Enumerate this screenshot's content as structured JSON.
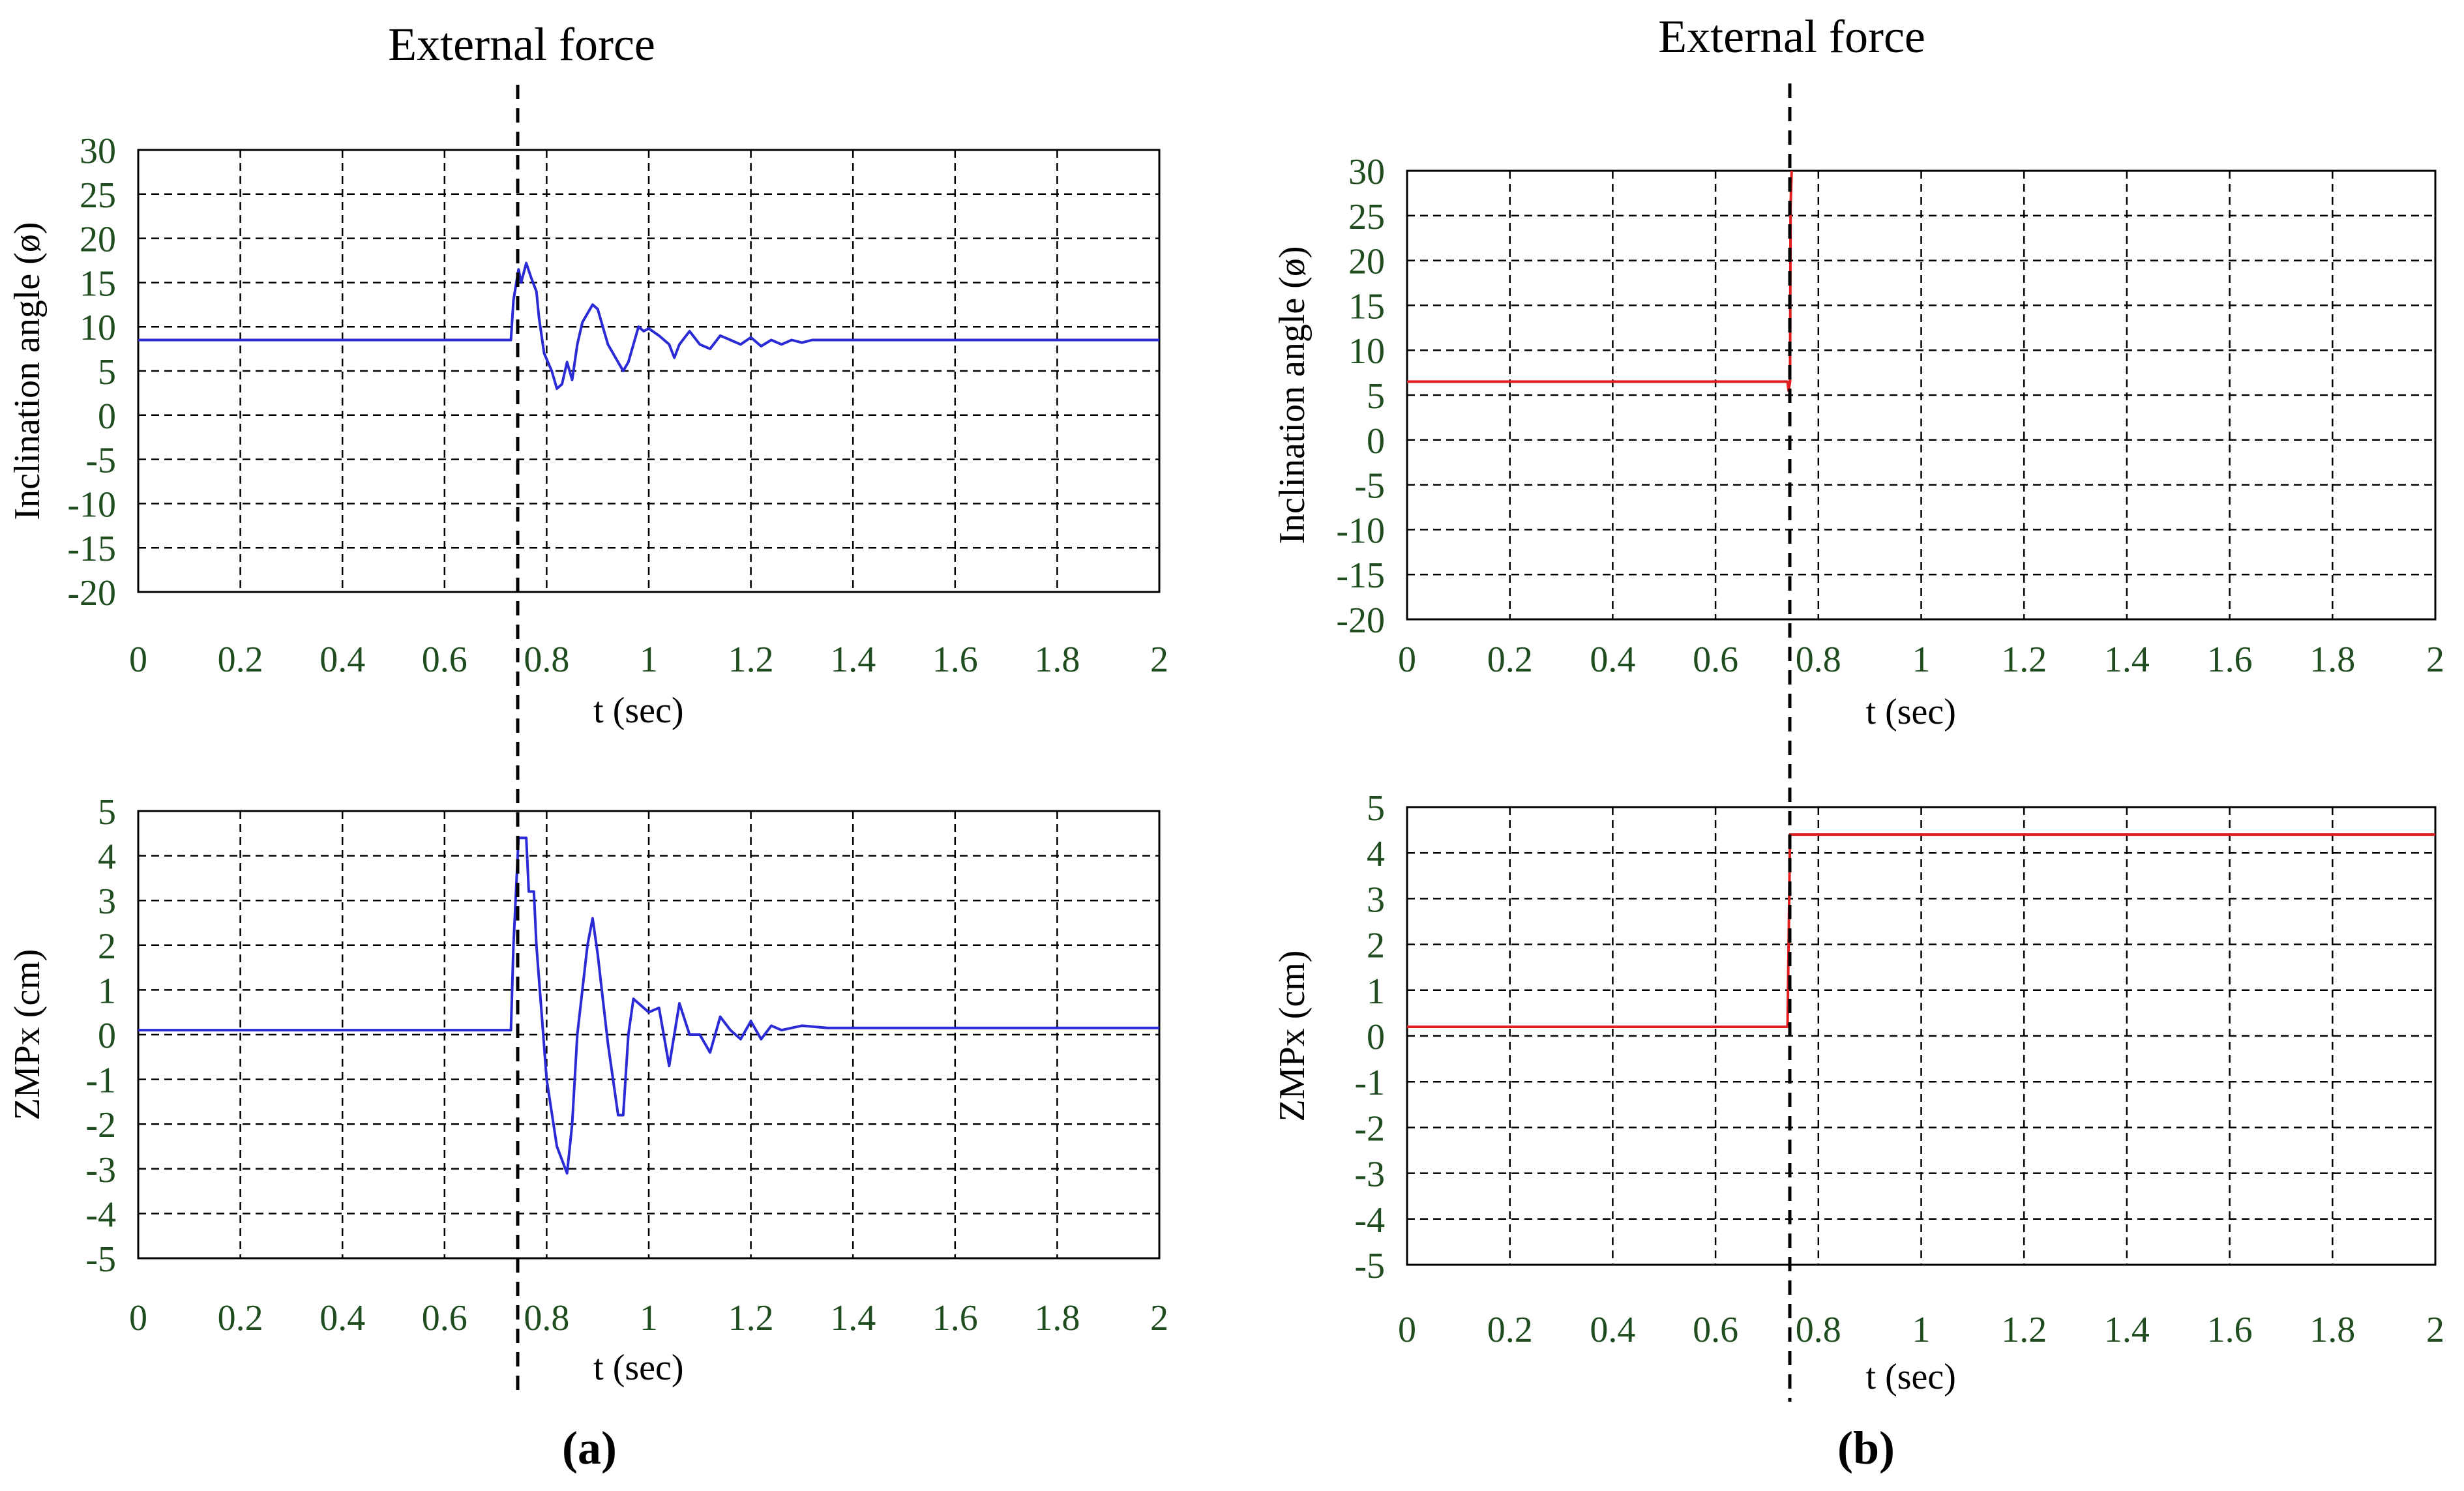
{
  "figure": {
    "external_force_label": "External force",
    "external_force_time": 0.73,
    "panel_labels": [
      "(a)",
      "(b)"
    ]
  },
  "chart_data": [
    {
      "id": "a-top",
      "panel": "(a)",
      "type": "line",
      "title": "",
      "xlabel": "t (sec)",
      "ylabel": "Inclination angle (ø)",
      "xlim": [
        0,
        2
      ],
      "ylim": [
        -20,
        30
      ],
      "xticks": [
        "0",
        "0.2",
        "0.4",
        "0.6",
        "0.8",
        "1",
        "1.2",
        "1.4",
        "1.6",
        "1.8",
        "2"
      ],
      "yticks": [
        "30",
        "25",
        "20",
        "15",
        "10",
        "5",
        "0",
        "-5",
        "-10",
        "-15",
        "-20"
      ],
      "grid": true,
      "series": [
        {
          "name": "Inclination angle",
          "color": "#2b2bd6",
          "x": [
            0,
            0.73,
            0.735,
            0.745,
            0.75,
            0.76,
            0.77,
            0.78,
            0.785,
            0.795,
            0.81,
            0.82,
            0.83,
            0.84,
            0.85,
            0.86,
            0.87,
            0.88,
            0.89,
            0.9,
            0.91,
            0.92,
            0.935,
            0.95,
            0.96,
            0.97,
            0.98,
            0.99,
            1.0,
            1.02,
            1.04,
            1.05,
            1.06,
            1.08,
            1.1,
            1.12,
            1.14,
            1.16,
            1.18,
            1.2,
            1.22,
            1.24,
            1.26,
            1.28,
            1.3,
            1.32,
            1.34,
            1.36,
            1.4,
            1.5,
            1.6,
            1.7,
            1.8,
            1.9,
            2.0
          ],
          "values": [
            8.5,
            8.5,
            13.0,
            16.5,
            15.0,
            17.2,
            15.5,
            14.0,
            11.0,
            7.0,
            5.0,
            3.0,
            3.5,
            6.0,
            4.0,
            8.0,
            10.5,
            11.5,
            12.5,
            12.0,
            10.0,
            8.0,
            6.5,
            5.0,
            6.0,
            8.0,
            10.0,
            9.5,
            9.8,
            9.0,
            8.0,
            6.5,
            8.0,
            9.5,
            8.0,
            7.5,
            9.0,
            8.5,
            8.0,
            8.8,
            7.8,
            8.5,
            8.0,
            8.5,
            8.2,
            8.5,
            8.5,
            8.5,
            8.5,
            8.5,
            8.5,
            8.5,
            8.5,
            8.5,
            8.5
          ]
        }
      ]
    },
    {
      "id": "a-bottom",
      "panel": "(a)",
      "type": "line",
      "title": "",
      "xlabel": "t (sec)",
      "ylabel": "ZMPx (cm)",
      "xlim": [
        0,
        2
      ],
      "ylim": [
        -5,
        5
      ],
      "xticks": [
        "0",
        "0.2",
        "0.4",
        "0.6",
        "0.8",
        "1",
        "1.2",
        "1.4",
        "1.6",
        "1.8",
        "2"
      ],
      "yticks": [
        "5",
        "4",
        "3",
        "2",
        "1",
        "0",
        "-1",
        "-2",
        "-3",
        "-4",
        "-5"
      ],
      "grid": true,
      "series": [
        {
          "name": "ZMPx",
          "color": "#2b2bd6",
          "x": [
            0,
            0.73,
            0.735,
            0.745,
            0.76,
            0.765,
            0.775,
            0.78,
            0.8,
            0.82,
            0.84,
            0.85,
            0.86,
            0.87,
            0.88,
            0.89,
            0.9,
            0.91,
            0.92,
            0.93,
            0.94,
            0.95,
            0.96,
            0.97,
            0.98,
            1.0,
            1.02,
            1.04,
            1.06,
            1.08,
            1.1,
            1.12,
            1.14,
            1.16,
            1.18,
            1.2,
            1.22,
            1.24,
            1.26,
            1.3,
            1.35,
            1.4,
            1.6,
            1.8,
            2.0
          ],
          "values": [
            0.1,
            0.1,
            2.0,
            4.4,
            4.4,
            3.2,
            3.2,
            2.0,
            -1.0,
            -2.5,
            -3.1,
            -2.0,
            0.0,
            1.0,
            2.0,
            2.6,
            1.8,
            0.8,
            -0.2,
            -1.0,
            -1.8,
            -1.8,
            0.0,
            0.8,
            0.7,
            0.5,
            0.6,
            -0.7,
            0.7,
            0.0,
            0.0,
            -0.4,
            0.4,
            0.1,
            -0.1,
            0.3,
            -0.1,
            0.2,
            0.1,
            0.2,
            0.15,
            0.15,
            0.15,
            0.15,
            0.15
          ]
        }
      ]
    },
    {
      "id": "b-top",
      "panel": "(b)",
      "type": "line",
      "title": "",
      "xlabel": "t (sec)",
      "ylabel": "Inclination angle (ø)",
      "xlim": [
        0,
        2
      ],
      "ylim": [
        -20,
        30
      ],
      "xticks": [
        "0",
        "0.2",
        "0.4",
        "0.6",
        "0.8",
        "1",
        "1.2",
        "1.4",
        "1.6",
        "1.8",
        "2"
      ],
      "yticks": [
        "30",
        "25",
        "20",
        "15",
        "10",
        "5",
        "0",
        "-5",
        "-10",
        "-15",
        "-20"
      ],
      "grid": true,
      "series": [
        {
          "name": "Inclination angle",
          "color": "#e02020",
          "x": [
            0,
            0.74,
            0.742,
            0.745,
            0.746,
            0.748
          ],
          "values": [
            6.5,
            6.5,
            5.5,
            6.5,
            26.0,
            30.0
          ]
        }
      ]
    },
    {
      "id": "b-bottom",
      "panel": "(b)",
      "type": "line",
      "title": "",
      "xlabel": "t (sec)",
      "ylabel": "ZMPx (cm)",
      "xlim": [
        0,
        2
      ],
      "ylim": [
        -5,
        5
      ],
      "xticks": [
        "0",
        "0.2",
        "0.4",
        "0.6",
        "0.8",
        "1",
        "1.2",
        "1.4",
        "1.6",
        "1.8",
        "2"
      ],
      "yticks": [
        "5",
        "4",
        "3",
        "2",
        "1",
        "0",
        "-1",
        "-2",
        "-3",
        "-4",
        "-5"
      ],
      "grid": true,
      "series": [
        {
          "name": "ZMPx",
          "color": "#e02020",
          "x": [
            0,
            0.74,
            0.745,
            2.0
          ],
          "values": [
            0.2,
            0.2,
            4.4,
            4.4
          ]
        }
      ]
    }
  ]
}
